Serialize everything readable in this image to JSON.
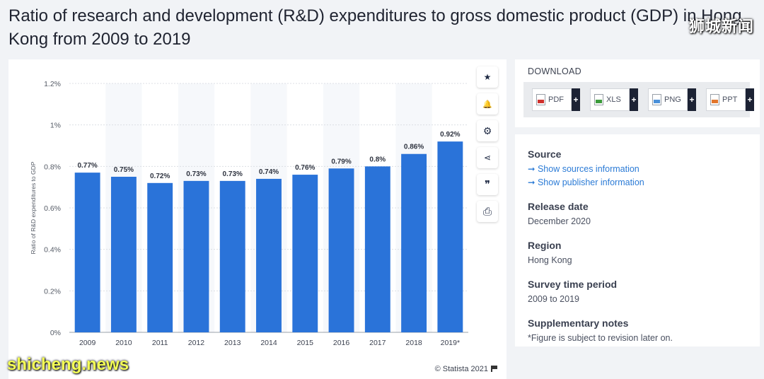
{
  "page": {
    "title": "Ratio of research and development (R&D) expenditures to gross domestic product (GDP) in Hong Kong from 2009 to 2019"
  },
  "watermarks": {
    "top": "狮城新闻",
    "bottom": "shicheng.news"
  },
  "chart_data": {
    "type": "bar",
    "categories": [
      "2009",
      "2010",
      "2011",
      "2012",
      "2013",
      "2014",
      "2015",
      "2016",
      "2017",
      "2018",
      "2019*"
    ],
    "values": [
      0.77,
      0.75,
      0.72,
      0.73,
      0.73,
      0.74,
      0.76,
      0.79,
      0.8,
      0.86,
      0.92
    ],
    "data_labels": [
      "0.77%",
      "0.75%",
      "0.72%",
      "0.73%",
      "0.73%",
      "0.74%",
      "0.76%",
      "0.79%",
      "0.8%",
      "0.86%",
      "0.92%"
    ],
    "ylabel": "Ratio of R&D expenditures to GDP",
    "xlabel": "",
    "ylim": [
      0,
      1.2
    ],
    "yticks": [
      0,
      0.2,
      0.4,
      0.6,
      0.8,
      1.0,
      1.2
    ],
    "ytick_labels": [
      "0%",
      "0.2%",
      "0.4%",
      "0.6%",
      "0.8%",
      "1%",
      "1.2%"
    ],
    "grid": true,
    "bar_color": "#2a73d9"
  },
  "chart_footer": {
    "copyright": "© Statista 2021"
  },
  "tools": [
    {
      "icon": "star-icon",
      "glyph": "★"
    },
    {
      "icon": "bell-icon",
      "glyph": "🔔"
    },
    {
      "icon": "gear-icon",
      "glyph": "⚙"
    },
    {
      "icon": "share-icon",
      "glyph": "⋖"
    },
    {
      "icon": "quote-icon",
      "glyph": "❞"
    },
    {
      "icon": "print-icon",
      "glyph": "⎙"
    }
  ],
  "download": {
    "title": "DOWNLOAD",
    "buttons": [
      {
        "label": "PDF",
        "plus": "+"
      },
      {
        "label": "XLS",
        "plus": "+"
      },
      {
        "label": "PNG",
        "plus": "+"
      },
      {
        "label": "PPT",
        "plus": "+"
      }
    ]
  },
  "info": {
    "source_label": "Source",
    "source_link_1": "➞ Show sources information",
    "source_link_2": "➞ Show publisher information",
    "release_label": "Release date",
    "release_value": "December 2020",
    "region_label": "Region",
    "region_value": "Hong Kong",
    "survey_label": "Survey time period",
    "survey_value": "2009 to 2019",
    "notes_label": "Supplementary notes",
    "notes_value": "*Figure is subject to revision later on."
  }
}
